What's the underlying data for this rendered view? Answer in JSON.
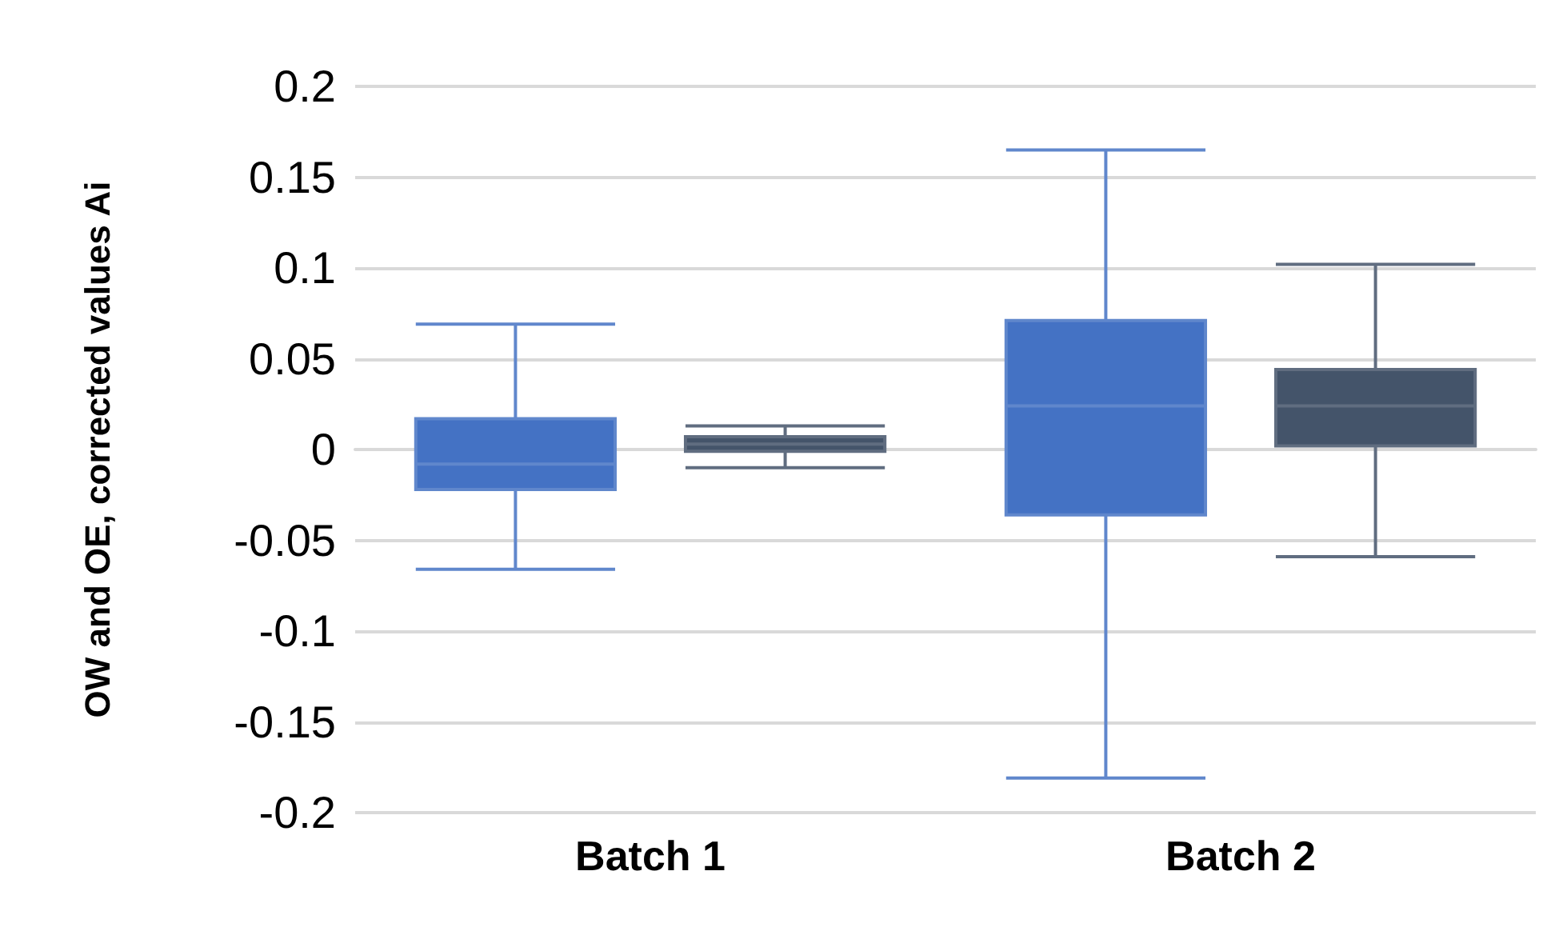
{
  "chart_data": {
    "type": "box",
    "ylabel": "OW and OE, corrected values Ai",
    "categories": [
      "Batch 1",
      "Batch 2"
    ],
    "series": [
      {
        "color": "#4472c4",
        "boxes": [
          {
            "low": -0.066,
            "q1": -0.022,
            "median": -0.008,
            "q3": 0.017,
            "high": 0.069
          },
          {
            "low": -0.181,
            "q1": -0.036,
            "median": 0.024,
            "q3": 0.071,
            "high": 0.165
          }
        ]
      },
      {
        "color": "#44546a",
        "boxes": [
          {
            "low": -0.01,
            "q1": -0.001,
            "median": 0.003,
            "q3": 0.007,
            "high": 0.013
          },
          {
            "low": -0.059,
            "q1": 0.002,
            "median": 0.024,
            "q3": 0.044,
            "high": 0.102
          }
        ]
      }
    ],
    "ylim": [
      -0.2,
      0.2
    ],
    "yticks": [
      -0.2,
      -0.15,
      -0.1,
      -0.05,
      0,
      0.05,
      0.1,
      0.15,
      0.2
    ],
    "grid": "y",
    "legend": false
  }
}
